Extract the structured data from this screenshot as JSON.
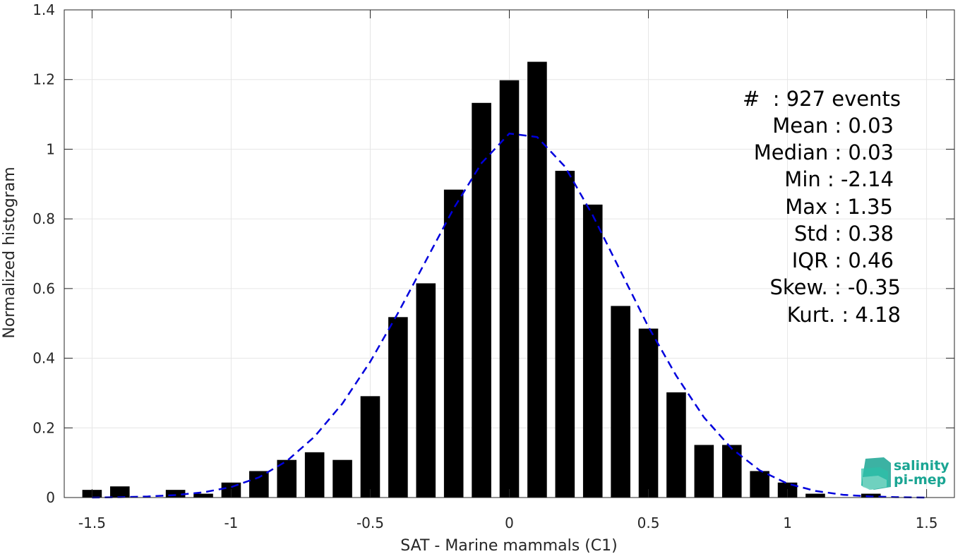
{
  "chart_data": {
    "type": "bar",
    "xlabel": "SAT - Marine mammals (C1)",
    "ylabel": "Normalized histogram",
    "xlim": [
      -1.6,
      1.6
    ],
    "ylim": [
      0,
      1.4
    ],
    "xticks": [
      -1.5,
      -1,
      -0.5,
      0,
      0.5,
      1,
      1.5
    ],
    "xtick_labels": [
      "-1.5",
      "-1",
      "-0.5",
      "0",
      "0.5",
      "1",
      "1.5"
    ],
    "yticks": [
      0,
      0.2,
      0.4,
      0.6,
      0.8,
      1,
      1.2,
      1.4
    ],
    "ytick_labels": [
      "0",
      "0.2",
      "0.4",
      "0.6",
      "0.8",
      "1",
      "1.2",
      "1.4"
    ],
    "grid": true,
    "bar_color": "#000000",
    "bins": [
      {
        "x": -1.5,
        "y": 0.022
      },
      {
        "x": -1.4,
        "y": 0.032
      },
      {
        "x": -1.2,
        "y": 0.022
      },
      {
        "x": -1.1,
        "y": 0.011
      },
      {
        "x": -1.0,
        "y": 0.043
      },
      {
        "x": -0.9,
        "y": 0.076
      },
      {
        "x": -0.8,
        "y": 0.108
      },
      {
        "x": -0.7,
        "y": 0.13
      },
      {
        "x": -0.6,
        "y": 0.108
      },
      {
        "x": -0.5,
        "y": 0.291
      },
      {
        "x": -0.4,
        "y": 0.518
      },
      {
        "x": -0.3,
        "y": 0.615
      },
      {
        "x": -0.2,
        "y": 0.884
      },
      {
        "x": -0.1,
        "y": 1.133
      },
      {
        "x": 0.0,
        "y": 1.198
      },
      {
        "x": 0.1,
        "y": 1.251
      },
      {
        "x": 0.2,
        "y": 0.938
      },
      {
        "x": 0.3,
        "y": 0.841
      },
      {
        "x": 0.4,
        "y": 0.55
      },
      {
        "x": 0.5,
        "y": 0.485
      },
      {
        "x": 0.6,
        "y": 0.302
      },
      {
        "x": 0.7,
        "y": 0.151
      },
      {
        "x": 0.8,
        "y": 0.151
      },
      {
        "x": 0.9,
        "y": 0.076
      },
      {
        "x": 1.0,
        "y": 0.043
      },
      {
        "x": 1.1,
        "y": 0.011
      },
      {
        "x": 1.3,
        "y": 0.011
      }
    ],
    "fit_curve": {
      "style": "dashed",
      "color": "#0000dd",
      "points": [
        [
          -1.5,
          0.0
        ],
        [
          -1.4,
          0.001
        ],
        [
          -1.3,
          0.003
        ],
        [
          -1.2,
          0.007
        ],
        [
          -1.1,
          0.015
        ],
        [
          -1.0,
          0.03
        ],
        [
          -0.9,
          0.058
        ],
        [
          -0.8,
          0.105
        ],
        [
          -0.7,
          0.175
        ],
        [
          -0.6,
          0.27
        ],
        [
          -0.5,
          0.39
        ],
        [
          -0.4,
          0.53
        ],
        [
          -0.3,
          0.68
        ],
        [
          -0.2,
          0.83
        ],
        [
          -0.1,
          0.96
        ],
        [
          0.0,
          1.045
        ],
        [
          0.1,
          1.035
        ],
        [
          0.2,
          0.95
        ],
        [
          0.3,
          0.81
        ],
        [
          0.4,
          0.65
        ],
        [
          0.5,
          0.49
        ],
        [
          0.6,
          0.35
        ],
        [
          0.7,
          0.23
        ],
        [
          0.8,
          0.14
        ],
        [
          0.9,
          0.078
        ],
        [
          1.0,
          0.04
        ],
        [
          1.1,
          0.019
        ],
        [
          1.2,
          0.008
        ],
        [
          1.3,
          0.003
        ],
        [
          1.4,
          0.001
        ],
        [
          1.5,
          0.0
        ]
      ]
    },
    "stats": {
      "events": "#  : 927 events",
      "mean": "Mean : 0.03",
      "median": "Median : 0.03",
      "min": "Min : -2.14",
      "max": "Max : 1.35",
      "std": "Std : 0.38",
      "iqr": "IQR : 0.46",
      "skew": "Skew. : -0.35",
      "kurt": "Kurt. : 4.18"
    }
  },
  "logo": {
    "line1": "salinity",
    "line2": "pi-mep",
    "color": "#1aa593"
  }
}
